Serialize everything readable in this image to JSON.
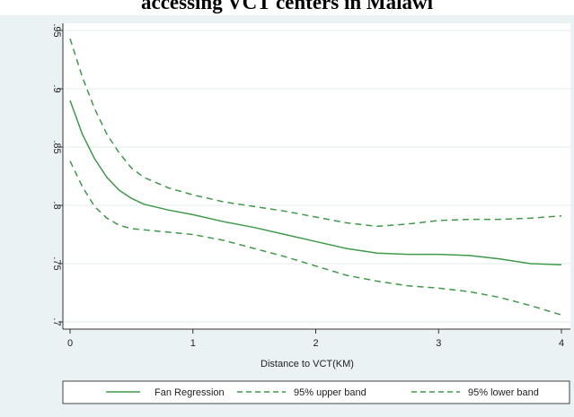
{
  "title": "accessing VCT centers in Malawi",
  "colors": {
    "line": "#3f9a4a",
    "background": "#eaf2f3",
    "plot_background": "#ffffff",
    "grid": "#e3ebec"
  },
  "chart_data": {
    "type": "line",
    "title": "accessing VCT centers in Malawi",
    "xlabel": "Distance to VCT(KM)",
    "ylabel": "",
    "xlim": [
      0,
      4
    ],
    "ylim": [
      0.7,
      0.95
    ],
    "x_ticks": [
      0,
      1,
      2,
      3,
      4
    ],
    "y_ticks": [
      0.7,
      0.75,
      0.8,
      0.85,
      0.9,
      0.95
    ],
    "x_tick_labels": [
      "0",
      "1",
      "2",
      "3",
      "4"
    ],
    "y_tick_labels": [
      ".7",
      ".75",
      ".8",
      ".85",
      ".9",
      ".95"
    ],
    "grid": "horizontal",
    "legend_position": "bottom",
    "series": [
      {
        "name": "Fan Regression",
        "style": "solid",
        "x": [
          0,
          0.1,
          0.2,
          0.3,
          0.4,
          0.5,
          0.6,
          0.8,
          1.0,
          1.25,
          1.5,
          1.75,
          2.0,
          2.25,
          2.5,
          2.75,
          3.0,
          3.25,
          3.5,
          3.75,
          4.0
        ],
        "y": [
          0.89,
          0.861,
          0.84,
          0.824,
          0.813,
          0.806,
          0.801,
          0.796,
          0.792,
          0.786,
          0.781,
          0.775,
          0.769,
          0.763,
          0.759,
          0.758,
          0.758,
          0.757,
          0.754,
          0.75,
          0.749
        ]
      },
      {
        "name": "95% upper band",
        "style": "dashed",
        "x": [
          0,
          0.1,
          0.2,
          0.3,
          0.4,
          0.5,
          0.6,
          0.8,
          1.0,
          1.25,
          1.5,
          1.75,
          2.0,
          2.25,
          2.5,
          2.75,
          3.0,
          3.25,
          3.5,
          3.75,
          4.0
        ],
        "y": [
          0.943,
          0.91,
          0.883,
          0.861,
          0.845,
          0.832,
          0.824,
          0.815,
          0.809,
          0.803,
          0.799,
          0.795,
          0.79,
          0.785,
          0.782,
          0.784,
          0.787,
          0.788,
          0.788,
          0.789,
          0.791
        ]
      },
      {
        "name": "95% lower band",
        "style": "dashed",
        "x": [
          0,
          0.1,
          0.2,
          0.3,
          0.4,
          0.5,
          0.6,
          0.8,
          1.0,
          1.25,
          1.5,
          1.75,
          2.0,
          2.25,
          2.5,
          2.75,
          3.0,
          3.25,
          3.5,
          3.75,
          4.0
        ],
        "y": [
          0.838,
          0.816,
          0.799,
          0.789,
          0.783,
          0.78,
          0.779,
          0.777,
          0.775,
          0.77,
          0.763,
          0.756,
          0.748,
          0.74,
          0.735,
          0.731,
          0.729,
          0.726,
          0.721,
          0.714,
          0.706
        ]
      }
    ]
  }
}
